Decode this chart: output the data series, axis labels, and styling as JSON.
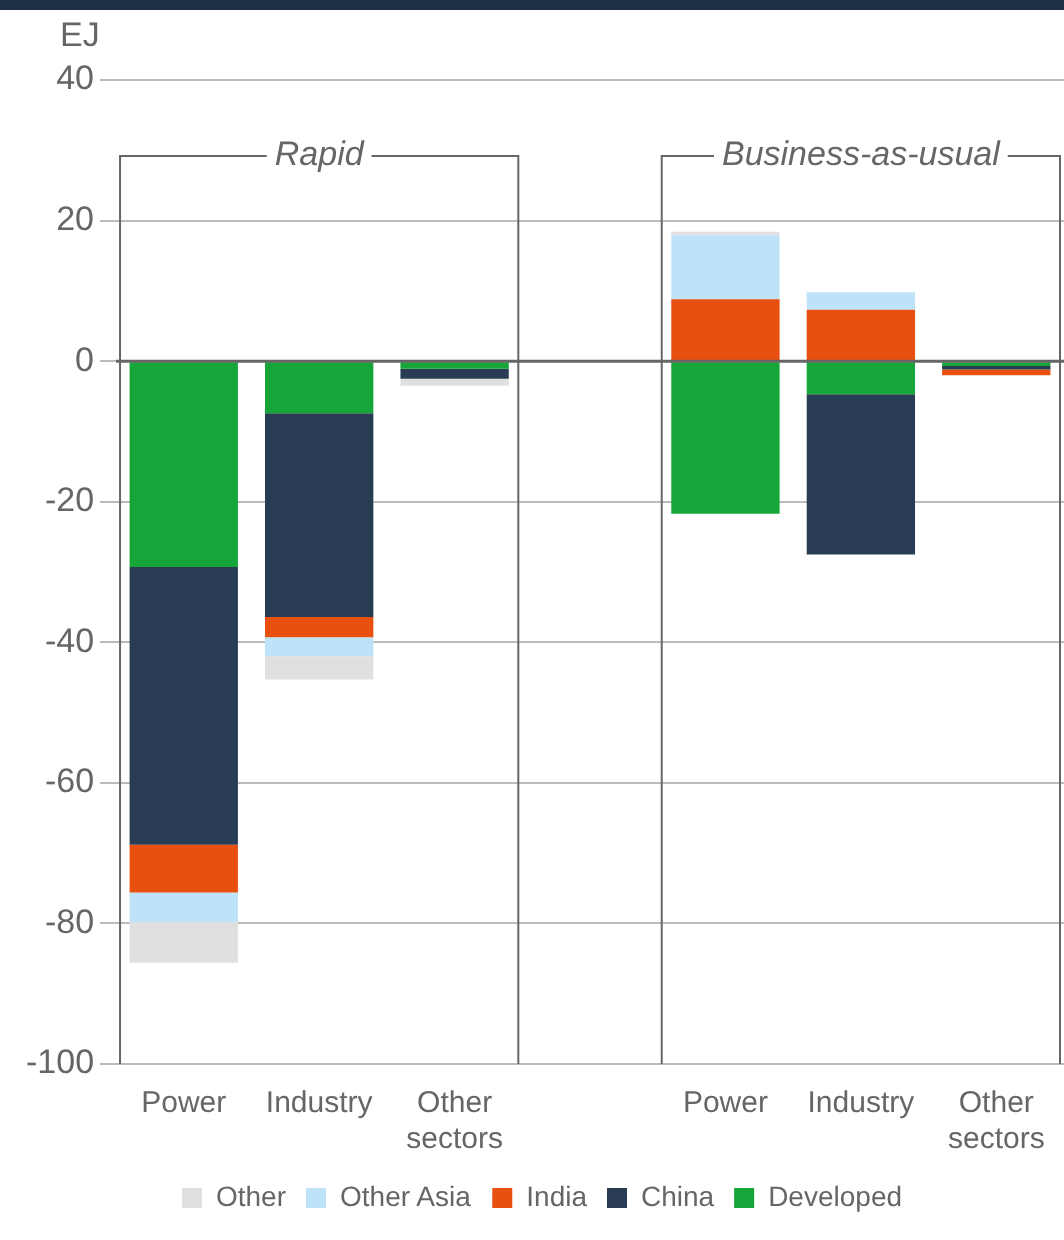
{
  "chart_data": {
    "type": "bar",
    "stacked": true,
    "ylabel": "EJ",
    "categories": [
      "Power",
      "Industry",
      "Other sectors",
      null,
      "Power",
      "Industry",
      "Other sectors"
    ],
    "series": [
      {
        "name": "Developed",
        "color": "#16a538",
        "values": [
          -29.3,
          -7.4,
          -1.1,
          null,
          -21.7,
          -4.7,
          -0.7
        ]
      },
      {
        "name": "China",
        "color": "#283d53",
        "values": [
          -39.5,
          -29,
          -1.4,
          null,
          0,
          -22.8,
          -0.5
        ]
      },
      {
        "name": "India",
        "color": "#e8500f",
        "values": [
          -6.8,
          -2.9,
          0,
          null,
          8.8,
          7.3,
          -0.8
        ]
      },
      {
        "name": "Other Asia",
        "color": "#bee3f8",
        "values": [
          -4.2,
          -2.7,
          0,
          null,
          9.1,
          2.5,
          0
        ]
      },
      {
        "name": "Other",
        "color": "#e0e0e0",
        "values": [
          -5.8,
          -3.3,
          -1,
          null,
          0.5,
          0,
          0
        ]
      }
    ],
    "ylim": [
      -100,
      40
    ],
    "yticks": [
      40,
      20,
      0,
      -20,
      -40,
      -60,
      -80,
      -100
    ],
    "grid": "y",
    "legend": "bottom",
    "annotations": [
      "Rapid",
      "Business-as-usual"
    ]
  }
}
